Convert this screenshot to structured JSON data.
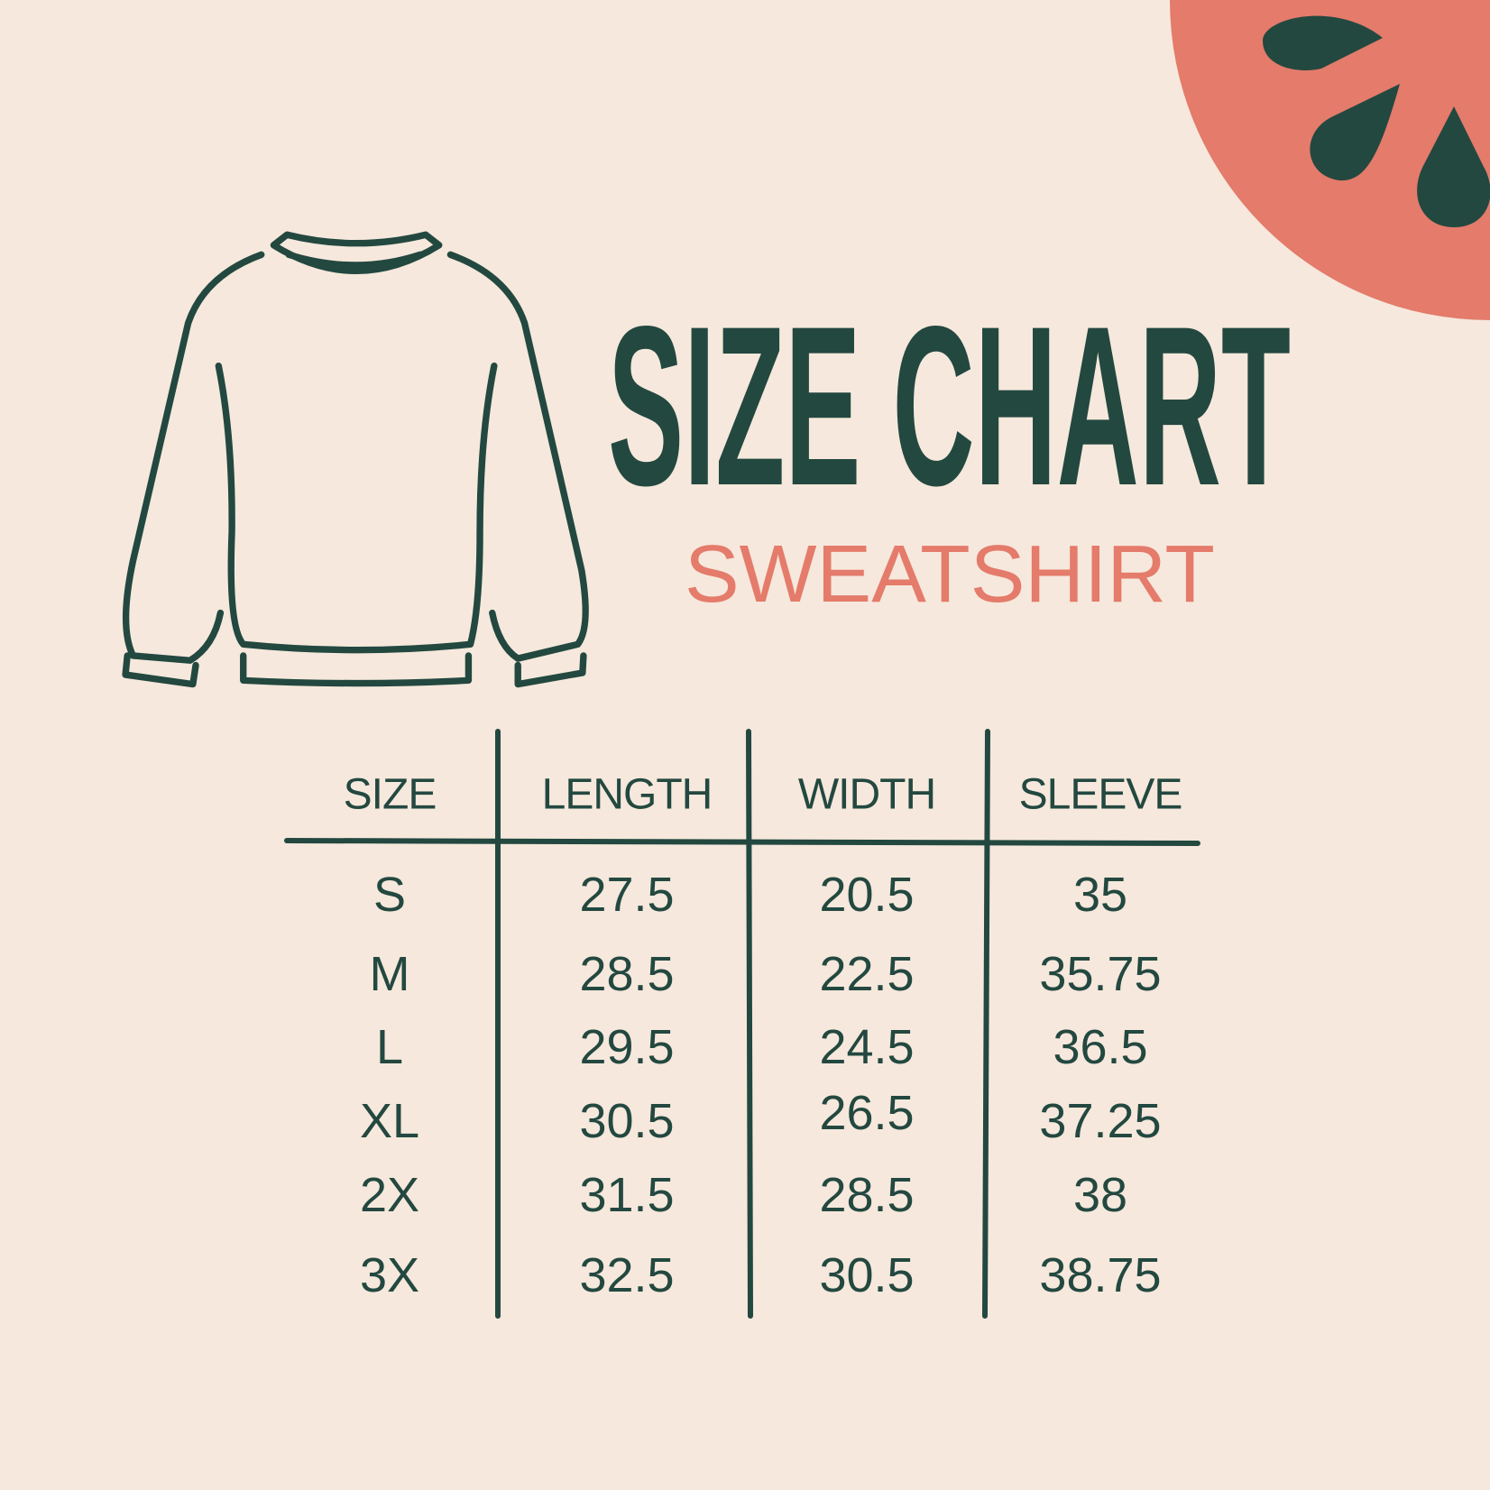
{
  "title": "SIZE CHART",
  "subtitle": "SWEATSHIRT",
  "colors": {
    "background": "#f6e8dc",
    "dark_green": "#234840",
    "coral": "#e47b6b"
  },
  "icons": [
    "sweatshirt-icon",
    "watermelon-slice-icon"
  ],
  "table": {
    "headers": [
      "SIZE",
      "LENGTH",
      "WIDTH",
      "SLEEVE"
    ],
    "rows": [
      [
        "S",
        "27.5",
        "20.5",
        "35"
      ],
      [
        "M",
        "28.5",
        "22.5",
        "35.75"
      ],
      [
        "L",
        "29.5",
        "24.5",
        "36.5"
      ],
      [
        "XL",
        "30.5",
        "26.5",
        "37.25"
      ],
      [
        "2X",
        "31.5",
        "28.5",
        "38"
      ],
      [
        "3X",
        "32.5",
        "30.5",
        "38.75"
      ]
    ]
  }
}
